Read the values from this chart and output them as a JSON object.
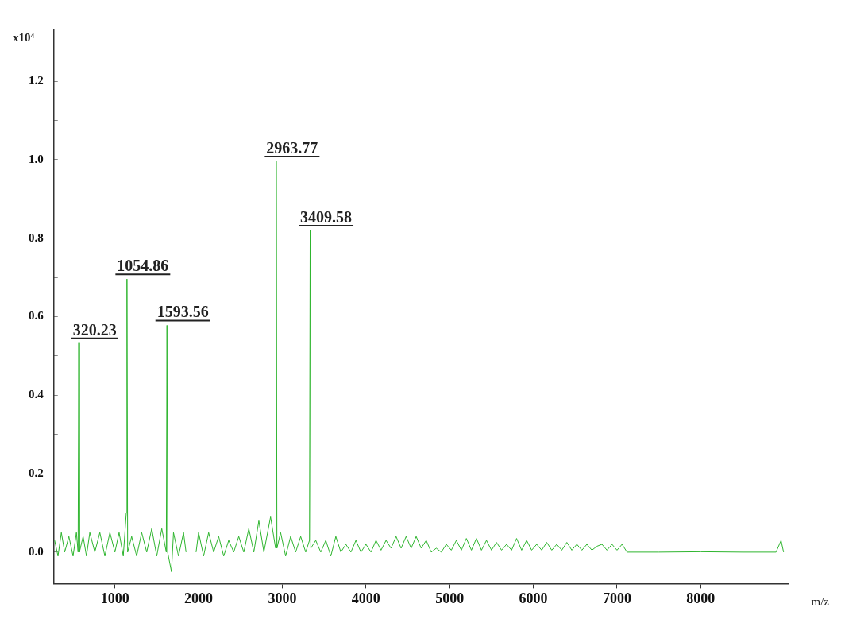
{
  "chart_data": {
    "type": "line",
    "xlabel": "m/z",
    "ylabel": "x10⁴",
    "xlim": [
      270,
      9050
    ],
    "xticks": [
      1000,
      2000,
      3000,
      4000,
      5000,
      6000,
      7000,
      8000
    ],
    "ylim": [
      -0.08,
      1.33
    ],
    "yticks": [
      {
        "value": 0,
        "label": "0.0"
      },
      {
        "value": 0.1,
        "label": null
      },
      {
        "value": 0.2,
        "label": "0.2"
      },
      {
        "value": 0.3,
        "label": null
      },
      {
        "value": 0.4,
        "label": "0.4"
      },
      {
        "value": 0.5,
        "label": null
      },
      {
        "value": 0.6,
        "label": "0.6"
      },
      {
        "value": 0.7,
        "label": null
      },
      {
        "value": 0.8,
        "label": "0.8"
      },
      {
        "value": 0.9,
        "label": null
      },
      {
        "value": 1.0,
        "label": "1.0"
      },
      {
        "value": 1.1,
        "label": null
      },
      {
        "value": 1.2,
        "label": "1.2"
      }
    ],
    "grid": false,
    "legend": false,
    "marker": "none",
    "line_style": "solid",
    "series": [
      {
        "color": "#2fb52f",
        "x": [
          280,
          320,
          360,
          400,
          450,
          500,
          540,
          560,
          568,
          576,
          620,
          660,
          700,
          760,
          820,
          880,
          940,
          1000,
          1050,
          1100,
          1136,
          1144,
          1152,
          1200,
          1260,
          1320,
          1380,
          1440,
          1500,
          1560,
          1614,
          1622,
          1630,
          1676,
          1700,
          1760,
          1820,
          1850,
          1900,
          1970,
          2000,
          2060,
          2120,
          2180,
          2240,
          2300,
          2360,
          2420,
          2480,
          2540,
          2600,
          2660,
          2720,
          2780,
          2860,
          2920,
          2928,
          2936,
          2980,
          3040,
          3100,
          3160,
          3220,
          3280,
          3325,
          3333,
          3341,
          3400,
          3460,
          3520,
          3580,
          3640,
          3700,
          3760,
          3820,
          3880,
          3940,
          4000,
          4060,
          4120,
          4180,
          4240,
          4300,
          4360,
          4420,
          4480,
          4540,
          4600,
          4660,
          4720,
          4780,
          4840,
          4900,
          4960,
          5020,
          5080,
          5140,
          5200,
          5260,
          5320,
          5380,
          5440,
          5500,
          5560,
          5620,
          5680,
          5740,
          5800,
          5860,
          5920,
          5980,
          6040,
          6100,
          6160,
          6220,
          6280,
          6340,
          6400,
          6460,
          6520,
          6580,
          6640,
          6700,
          6760,
          6820,
          6880,
          6940,
          7000,
          7060,
          7120,
          7500,
          8000,
          8500,
          8900,
          8960,
          8990
        ],
        "values": [
          0.03,
          -0.01,
          0.05,
          0.0,
          0.04,
          -0.01,
          0.05,
          0.0,
          0.533,
          0.0,
          0.04,
          -0.01,
          0.05,
          0.0,
          0.05,
          -0.01,
          0.05,
          0.0,
          0.05,
          -0.01,
          0.1,
          0.696,
          0.0,
          0.04,
          -0.01,
          0.05,
          0.0,
          0.06,
          -0.01,
          0.06,
          0.0,
          0.578,
          0.0,
          -0.05,
          0.05,
          -0.01,
          0.05,
          0.0,
          null,
          0.0,
          0.05,
          -0.01,
          0.05,
          0.0,
          0.04,
          -0.01,
          0.03,
          0.0,
          0.04,
          0.0,
          0.06,
          0.0,
          0.08,
          0.0,
          0.09,
          0.01,
          0.996,
          0.01,
          0.05,
          -0.01,
          0.04,
          0.0,
          0.04,
          0.0,
          0.03,
          0.82,
          0.01,
          0.03,
          0.0,
          0.03,
          -0.01,
          0.04,
          0.0,
          0.02,
          0.0,
          0.03,
          0.0,
          0.02,
          0.0,
          0.03,
          0.005,
          0.03,
          0.01,
          0.04,
          0.01,
          0.04,
          0.01,
          0.04,
          0.01,
          0.03,
          0.0,
          0.01,
          0.0,
          0.02,
          0.005,
          0.03,
          0.005,
          0.035,
          0.005,
          0.035,
          0.005,
          0.03,
          0.005,
          0.025,
          0.005,
          0.02,
          0.005,
          0.035,
          0.005,
          0.03,
          0.005,
          0.02,
          0.005,
          0.025,
          0.005,
          0.02,
          0.005,
          0.025,
          0.005,
          0.02,
          0.005,
          0.02,
          0.005,
          0.015,
          0.02,
          0.005,
          0.02,
          0.005,
          0.02,
          0.0,
          0.0,
          0.001,
          0.0,
          0.0,
          0.03,
          0.0
        ]
      }
    ],
    "annotations": [
      {
        "text": "320.23",
        "x": 568,
        "y": 0.533
      },
      {
        "text": "1054.86",
        "x": 1144,
        "y": 0.696
      },
      {
        "text": "1593.56",
        "x": 1622,
        "y": 0.578
      },
      {
        "text": "2963.77",
        "x": 2928,
        "y": 0.996
      },
      {
        "text": "3409.58",
        "x": 3333,
        "y": 0.82
      }
    ]
  }
}
